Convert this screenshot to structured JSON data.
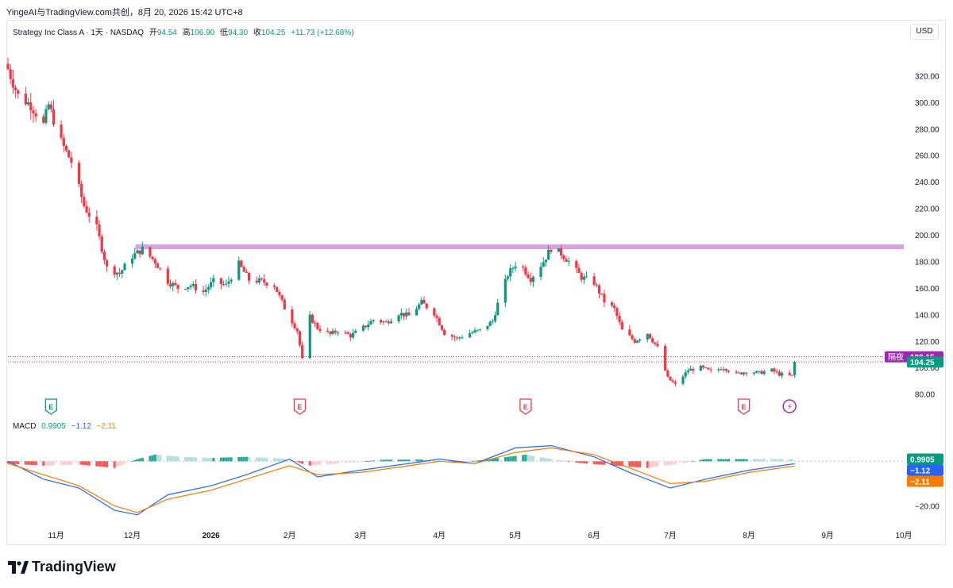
{
  "header": {
    "attribution": "YingeAI与TradingView.com共创，8月 20, 2026 15:42 UTC+8"
  },
  "legend": {
    "symbol": "Strategy Inc Class A · 1天 · NASDAQ",
    "open_label": "开",
    "open": "94.54",
    "high_label": "高",
    "high": "106.90",
    "low_label": "低",
    "low": "94.30",
    "close_label": "收",
    "close": "104.25",
    "change": "+11.73 (+12.68%)"
  },
  "currency": "USD",
  "price_badges": {
    "after_hours_label": "隔夜",
    "after_hours_value": "108.15",
    "last_value": "104.25"
  },
  "macd": {
    "label": "MACD",
    "hist": "0.9905",
    "macd": "−1.12",
    "signal": "−2.11"
  },
  "footer": {
    "brand": "TradingView"
  },
  "colors": {
    "up": "#089981",
    "down": "#f23645",
    "macd": "#2962ff",
    "signal": "#f57c00",
    "resistance": "#ce93d8",
    "after_hours_badge": "#9c27b0"
  },
  "chart_data": [
    {
      "type": "candlestick",
      "title": "Strategy Inc Class A · 1天 · NASDAQ",
      "y_ticks": [
        80,
        100,
        120,
        140,
        160,
        180,
        200,
        220,
        240,
        260,
        280,
        300,
        320
      ],
      "y_tick_labels": [
        "80.00",
        "100.00",
        "120.00",
        "140.00",
        "160.00",
        "180.00",
        "200.00",
        "220.00",
        "240.00",
        "260.00",
        "280.00",
        "300.00",
        "320.00"
      ],
      "ylim": [
        72,
        334
      ],
      "x_ticks": [
        {
          "date": "2025-11-01",
          "label": "11月",
          "bold": false
        },
        {
          "date": "2025-12-01",
          "label": "12月",
          "bold": false
        },
        {
          "date": "2026-01-01",
          "label": "2026",
          "bold": true
        },
        {
          "date": "2026-02-01",
          "label": "2月",
          "bold": false
        },
        {
          "date": "2026-03-01",
          "label": "3月",
          "bold": false
        },
        {
          "date": "2026-04-01",
          "label": "4月",
          "bold": false
        },
        {
          "date": "2026-05-01",
          "label": "5月",
          "bold": false
        },
        {
          "date": "2026-06-01",
          "label": "6月",
          "bold": false
        },
        {
          "date": "2026-07-01",
          "label": "7月",
          "bold": false
        },
        {
          "date": "2026-08-01",
          "label": "8月",
          "bold": false
        },
        {
          "date": "2026-09-01",
          "label": "9月",
          "bold": false
        },
        {
          "date": "2026-10-01",
          "label": "10月",
          "bold": false
        }
      ],
      "resistance_level": 191,
      "last_close": 104.25,
      "after_hours": 108.15,
      "earnings_markers": [
        {
          "date": "2025-10-30",
          "label": "E",
          "kind": "earnings-past"
        },
        {
          "date": "2026-02-05",
          "label": "E",
          "kind": "earnings"
        },
        {
          "date": "2026-05-05",
          "label": "E",
          "kind": "earnings"
        },
        {
          "date": "2026-07-30",
          "label": "E",
          "kind": "earnings"
        },
        {
          "date": "2026-08-17",
          "label": "⚡",
          "kind": "event"
        }
      ],
      "close_path": [
        [
          "2025-10-13",
          325
        ],
        [
          "2025-10-17",
          305
        ],
        [
          "2025-10-22",
          298
        ],
        [
          "2025-10-27",
          283
        ],
        [
          "2025-10-29",
          298
        ],
        [
          "2025-11-03",
          270
        ],
        [
          "2025-11-07",
          255
        ],
        [
          "2025-11-12",
          222
        ],
        [
          "2025-11-17",
          205
        ],
        [
          "2025-11-21",
          175
        ],
        [
          "2025-11-26",
          171
        ],
        [
          "2025-12-01",
          184
        ],
        [
          "2025-12-05",
          189
        ],
        [
          "2025-12-10",
          180
        ],
        [
          "2025-12-15",
          165
        ],
        [
          "2025-12-19",
          160
        ],
        [
          "2025-12-24",
          162
        ],
        [
          "2025-12-29",
          157
        ],
        [
          "2026-01-02",
          165
        ],
        [
          "2026-01-07",
          162
        ],
        [
          "2026-01-12",
          178
        ],
        [
          "2026-01-16",
          166
        ],
        [
          "2026-01-21",
          165
        ],
        [
          "2026-01-26",
          162
        ],
        [
          "2026-01-30",
          145
        ],
        [
          "2026-02-04",
          128
        ],
        [
          "2026-02-06",
          106
        ],
        [
          "2026-02-09",
          138
        ],
        [
          "2026-02-12",
          130
        ],
        [
          "2026-02-17",
          125
        ],
        [
          "2026-02-20",
          128
        ],
        [
          "2026-02-25",
          124
        ],
        [
          "2026-03-02",
          130
        ],
        [
          "2026-03-06",
          136
        ],
        [
          "2026-03-11",
          134
        ],
        [
          "2026-03-16",
          141
        ],
        [
          "2026-03-20",
          139
        ],
        [
          "2026-03-25",
          149
        ],
        [
          "2026-03-30",
          141
        ],
        [
          "2026-04-03",
          126
        ],
        [
          "2026-04-08",
          122
        ],
        [
          "2026-04-13",
          126
        ],
        [
          "2026-04-17",
          128
        ],
        [
          "2026-04-22",
          135
        ],
        [
          "2026-04-24",
          148
        ],
        [
          "2026-04-28",
          170
        ],
        [
          "2026-05-01",
          178
        ],
        [
          "2026-05-04",
          175
        ],
        [
          "2026-05-07",
          167
        ],
        [
          "2026-05-12",
          180
        ],
        [
          "2026-05-15",
          190
        ],
        [
          "2026-05-19",
          186
        ],
        [
          "2026-05-22",
          180
        ],
        [
          "2026-05-27",
          168
        ],
        [
          "2026-06-01",
          164
        ],
        [
          "2026-06-05",
          150
        ],
        [
          "2026-06-09",
          144
        ],
        [
          "2026-06-12",
          128
        ],
        [
          "2026-06-17",
          120
        ],
        [
          "2026-06-22",
          126
        ],
        [
          "2026-06-26",
          115
        ],
        [
          "2026-06-30",
          92
        ],
        [
          "2026-07-03",
          87
        ],
        [
          "2026-07-08",
          98
        ],
        [
          "2026-07-13",
          100
        ],
        [
          "2026-07-17",
          97
        ],
        [
          "2026-07-22",
          100
        ],
        [
          "2026-07-27",
          95
        ],
        [
          "2026-07-31",
          97
        ],
        [
          "2026-08-05",
          96
        ],
        [
          "2026-08-10",
          98
        ],
        [
          "2026-08-13",
          95
        ],
        [
          "2026-08-18",
          93.5
        ],
        [
          "2026-08-19",
          104.25
        ]
      ]
    },
    {
      "type": "line",
      "title": "MACD",
      "y_ticks": [
        -20
      ],
      "y_tick_labels": [
        "−20.00"
      ],
      "ylim": [
        -28,
        9
      ],
      "series": [
        {
          "name": "MACD",
          "color": "#2962ff",
          "points": [
            [
              "2025-10-13",
              0
            ],
            [
              "2025-10-27",
              -8
            ],
            [
              "2025-11-10",
              -12
            ],
            [
              "2025-11-24",
              -22
            ],
            [
              "2025-12-03",
              -24
            ],
            [
              "2025-12-15",
              -15
            ],
            [
              "2026-01-01",
              -11
            ],
            [
              "2026-01-15",
              -6
            ],
            [
              "2026-02-01",
              1
            ],
            [
              "2026-02-12",
              -7
            ],
            [
              "2026-03-01",
              -4
            ],
            [
              "2026-03-20",
              -1
            ],
            [
              "2026-04-01",
              1
            ],
            [
              "2026-04-15",
              -1
            ],
            [
              "2026-05-01",
              6
            ],
            [
              "2026-05-15",
              7
            ],
            [
              "2026-06-01",
              2
            ],
            [
              "2026-06-15",
              -5
            ],
            [
              "2026-07-01",
              -12
            ],
            [
              "2026-07-15",
              -8
            ],
            [
              "2026-08-01",
              -4
            ],
            [
              "2026-08-19",
              -1.12
            ]
          ]
        },
        {
          "name": "Signal",
          "color": "#f57c00",
          "points": [
            [
              "2025-10-13",
              -1
            ],
            [
              "2025-10-27",
              -6
            ],
            [
              "2025-11-10",
              -11
            ],
            [
              "2025-11-24",
              -20
            ],
            [
              "2025-12-03",
              -23
            ],
            [
              "2025-12-15",
              -17
            ],
            [
              "2026-01-01",
              -13
            ],
            [
              "2026-01-15",
              -8
            ],
            [
              "2026-02-01",
              -2
            ],
            [
              "2026-02-12",
              -6
            ],
            [
              "2026-03-01",
              -5
            ],
            [
              "2026-03-20",
              -2
            ],
            [
              "2026-04-01",
              0
            ],
            [
              "2026-04-15",
              -1
            ],
            [
              "2026-05-01",
              4
            ],
            [
              "2026-05-15",
              6
            ],
            [
              "2026-06-01",
              3
            ],
            [
              "2026-06-15",
              -3
            ],
            [
              "2026-07-01",
              -10
            ],
            [
              "2026-07-15",
              -9
            ],
            [
              "2026-08-01",
              -5
            ],
            [
              "2026-08-19",
              -2.11
            ]
          ]
        }
      ],
      "histogram": [
        [
          "2025-10-13",
          -1
        ],
        [
          "2025-10-27",
          -2
        ],
        [
          "2025-11-10",
          -1.5
        ],
        [
          "2025-11-24",
          -3
        ],
        [
          "2025-12-03",
          1
        ],
        [
          "2025-12-10",
          3
        ],
        [
          "2025-12-20",
          2
        ],
        [
          "2026-01-01",
          1.5
        ],
        [
          "2026-01-15",
          2
        ],
        [
          "2026-02-01",
          1
        ],
        [
          "2026-02-08",
          -2
        ],
        [
          "2026-02-20",
          -1
        ],
        [
          "2026-03-10",
          0.7
        ],
        [
          "2026-03-25",
          0.8
        ],
        [
          "2026-04-10",
          -0.5
        ],
        [
          "2026-04-28",
          2
        ],
        [
          "2026-05-05",
          3
        ],
        [
          "2026-05-15",
          1
        ],
        [
          "2026-05-28",
          -1
        ],
        [
          "2026-06-10",
          -2
        ],
        [
          "2026-06-22",
          -3
        ],
        [
          "2026-07-05",
          -1
        ],
        [
          "2026-07-15",
          1
        ],
        [
          "2026-08-01",
          1
        ],
        [
          "2026-08-19",
          0.9905
        ]
      ]
    }
  ]
}
